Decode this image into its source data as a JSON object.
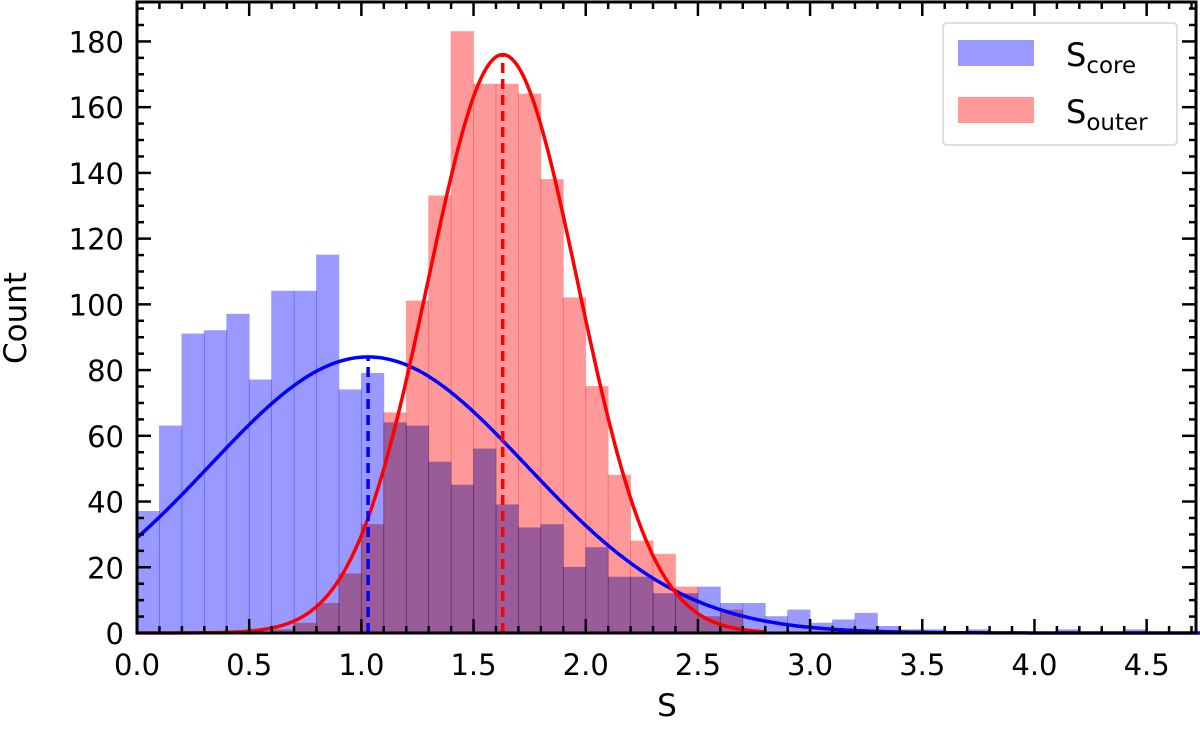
{
  "chart_data": {
    "type": "bar",
    "subtype": "overlaid histogram with gaussian fits",
    "title": "",
    "xlabel": "S",
    "ylabel": "Count",
    "xlim": [
      0.0,
      4.72
    ],
    "ylim": [
      0,
      192
    ],
    "x_ticks": [
      "0.0",
      "0.5",
      "1.0",
      "1.5",
      "2.0",
      "2.5",
      "3.0",
      "3.5",
      "4.0",
      "4.5"
    ],
    "x_tick_values": [
      0.0,
      0.5,
      1.0,
      1.5,
      2.0,
      2.5,
      3.0,
      3.5,
      4.0,
      4.5
    ],
    "y_ticks": [
      "0",
      "20",
      "40",
      "60",
      "80",
      "100",
      "120",
      "140",
      "160",
      "180"
    ],
    "y_tick_values": [
      0,
      20,
      40,
      60,
      80,
      100,
      120,
      140,
      160,
      180
    ],
    "grid": false,
    "legend_position": "upper right",
    "bin_width": 0.1,
    "series": [
      {
        "name": "S_core",
        "legend_main": "S",
        "legend_sub": "core",
        "color": "#9999ff",
        "bin_starts": [
          0.0,
          0.1,
          0.2,
          0.3,
          0.4,
          0.5,
          0.6,
          0.7,
          0.8,
          0.9,
          1.0,
          1.1,
          1.2,
          1.3,
          1.4,
          1.5,
          1.6,
          1.7,
          1.8,
          1.9,
          2.0,
          2.1,
          2.2,
          2.3,
          2.4,
          2.5,
          2.6,
          2.7,
          2.8,
          2.9,
          3.0,
          3.1,
          3.2,
          3.3,
          3.4,
          3.5,
          3.6,
          3.7,
          3.8,
          3.9,
          4.0,
          4.1,
          4.2,
          4.3,
          4.4
        ],
        "values": [
          37,
          63,
          91,
          92,
          97,
          77,
          104,
          104,
          115,
          74,
          79,
          64,
          63,
          52,
          45,
          56,
          39,
          32,
          33,
          20,
          26,
          17,
          17,
          12,
          12,
          14,
          9,
          9,
          5,
          7,
          3,
          4,
          6,
          2,
          1,
          1,
          0,
          1,
          0,
          0,
          0,
          1,
          0,
          0,
          1
        ],
        "fit": {
          "type": "gaussian",
          "mean": 1.03,
          "sigma": 0.706,
          "peak": 84,
          "color": "#0000ff"
        }
      },
      {
        "name": "S_outer",
        "legend_main": "S",
        "legend_sub": "outer",
        "color": "#ff9999",
        "bin_starts": [
          0.6,
          0.7,
          0.8,
          0.9,
          1.0,
          1.1,
          1.2,
          1.3,
          1.4,
          1.5,
          1.6,
          1.7,
          1.8,
          1.9,
          2.0,
          2.1,
          2.2,
          2.3,
          2.4,
          2.5,
          2.6
        ],
        "values": [
          1,
          3,
          9,
          18,
          33,
          67,
          101,
          133,
          183,
          167,
          167,
          164,
          138,
          102,
          75,
          48,
          28,
          24,
          14,
          5,
          7
        ],
        "fit": {
          "type": "gaussian",
          "mean": 1.63,
          "sigma": 0.334,
          "peak": 176,
          "color": "#ff0000"
        }
      }
    ],
    "annotations": [
      {
        "type": "vertical_dashed_line",
        "x": 1.03,
        "to_y": 84,
        "color": "#0000ff",
        "label": "S_core fit mean"
      },
      {
        "type": "vertical_dashed_line",
        "x": 1.63,
        "to_y": 176,
        "color": "#ff0000",
        "label": "S_outer fit mean"
      }
    ]
  },
  "legend": {
    "items": [
      {
        "main": "S",
        "sub": "core",
        "color": "#9999ff"
      },
      {
        "main": "S",
        "sub": "outer",
        "color": "#ff9999"
      }
    ]
  },
  "axes": {
    "xlabel": "S",
    "ylabel": "Count"
  }
}
